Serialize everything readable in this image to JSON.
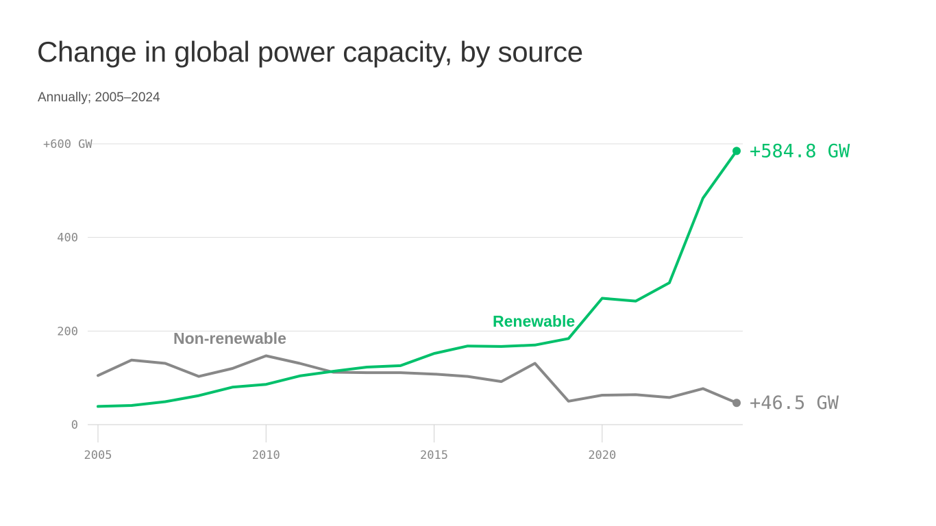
{
  "title": "Change in global power capacity, by source",
  "subtitle": "Annually; 2005–2024",
  "colors": {
    "renewable": "#00c06b",
    "non_renewable": "#888888",
    "grid": "#dddddd"
  },
  "chart_data": {
    "type": "line",
    "title": "Change in global power capacity, by source",
    "subtitle": "Annually; 2005–2024",
    "x": [
      2005,
      2006,
      2007,
      2008,
      2009,
      2010,
      2011,
      2012,
      2013,
      2014,
      2015,
      2016,
      2017,
      2018,
      2019,
      2020,
      2021,
      2022,
      2023,
      2024
    ],
    "xlim": [
      2005,
      2024
    ],
    "ylim": [
      0,
      600
    ],
    "grid": true,
    "x_ticks": [
      {
        "value": 2005,
        "label": "2005"
      },
      {
        "value": 2010,
        "label": "2010"
      },
      {
        "value": 2015,
        "label": "2015"
      },
      {
        "value": 2020,
        "label": "2020"
      }
    ],
    "y_ticks": [
      {
        "value": 0,
        "label": "0"
      },
      {
        "value": 200,
        "label": "200"
      },
      {
        "value": 400,
        "label": "400"
      },
      {
        "value": 600,
        "label": "+600 GW"
      }
    ],
    "series": [
      {
        "name": "Renewable",
        "color": "#00c06b",
        "values": [
          39,
          41,
          49,
          62,
          80,
          86,
          104,
          114,
          123,
          126,
          152,
          168,
          167,
          170,
          184,
          270,
          264,
          303,
          484,
          584.8
        ],
        "end_label": "+584.8 GW"
      },
      {
        "name": "Non-renewable",
        "color": "#888888",
        "values": [
          105,
          138,
          131,
          103,
          120,
          147,
          131,
          112,
          111,
          111,
          108,
          103,
          92,
          131,
          50,
          63,
          64,
          58,
          77,
          46.5
        ],
        "end_label": "+46.5 GW"
      }
    ]
  }
}
